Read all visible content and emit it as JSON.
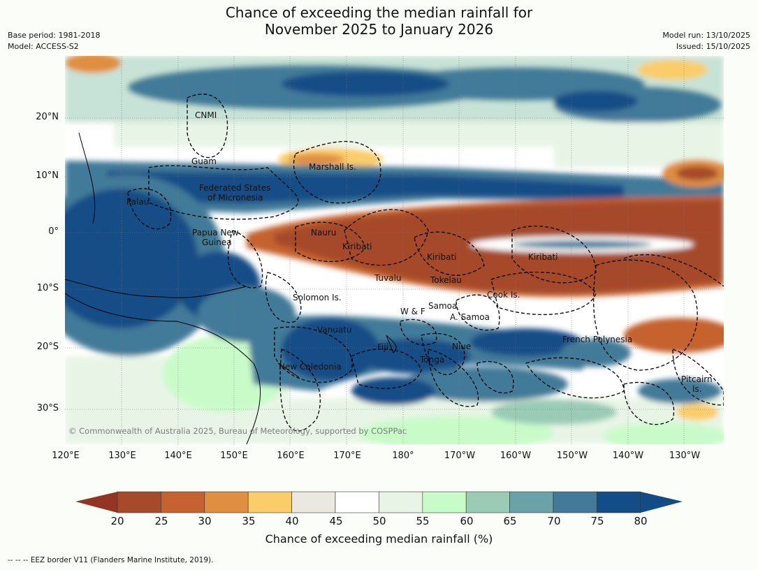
{
  "header": {
    "title_line1": "Chance of exceeding the median rainfall for",
    "title_line2": "November 2025 to January 2026",
    "base_period": "Base period: 1981-2018",
    "model": "Model: ACCESS-S2",
    "model_run": "Model run: 13/10/2025",
    "issued": "Issued: 15/10/2025"
  },
  "map": {
    "lon_ticks": [
      "120°E",
      "130°E",
      "140°E",
      "150°E",
      "160°E",
      "170°E",
      "180°",
      "170°W",
      "160°W",
      "150°W",
      "140°W",
      "130°W"
    ],
    "lat_ticks": [
      "20°N",
      "10°N",
      "0°",
      "10°S",
      "20°S",
      "30°S"
    ],
    "regions": [
      "CNMI",
      "Guam",
      "Marshall Is.",
      "Federated States",
      "of Micronesia",
      "Palau",
      "Papua New",
      "Guinea",
      "Nauru",
      "Kiribati",
      "Kiribati",
      "Kiribati",
      "Tuvalu",
      "Tokelau",
      "Cook Is.",
      "Solomon Is.",
      "Samoa",
      "W & F",
      "A. Samoa",
      "Vanuatu",
      "Fiji",
      "Niue",
      "Tonga",
      "French Polynesia",
      "New Caledonia",
      "Pitcairn",
      "Is."
    ],
    "copyright": "© Commonwealth of Australia 2025, Bureau of Meteorology, supported by COSPPac"
  },
  "colorbar": {
    "ticks": [
      "20",
      "25",
      "30",
      "35",
      "40",
      "45",
      "50",
      "55",
      "60",
      "65",
      "70",
      "75",
      "80"
    ],
    "colors": [
      "#a64a2b",
      "#c5622f",
      "#e08e40",
      "#fbcc6a",
      "#ebe7e1",
      "#ffffff",
      "#ffffff",
      "#e8f5e6",
      "#c9fbc9",
      "#99cbb5",
      "#6aa2a7",
      "#437a99",
      "#134d87"
    ],
    "under_color": "#923523",
    "over_color": "#124c86",
    "label": "Chance of exceeding median rainfall (%)"
  },
  "footnote": "--  --  -- EEZ border V11 (Flanders Marine Institute, 2019)."
}
